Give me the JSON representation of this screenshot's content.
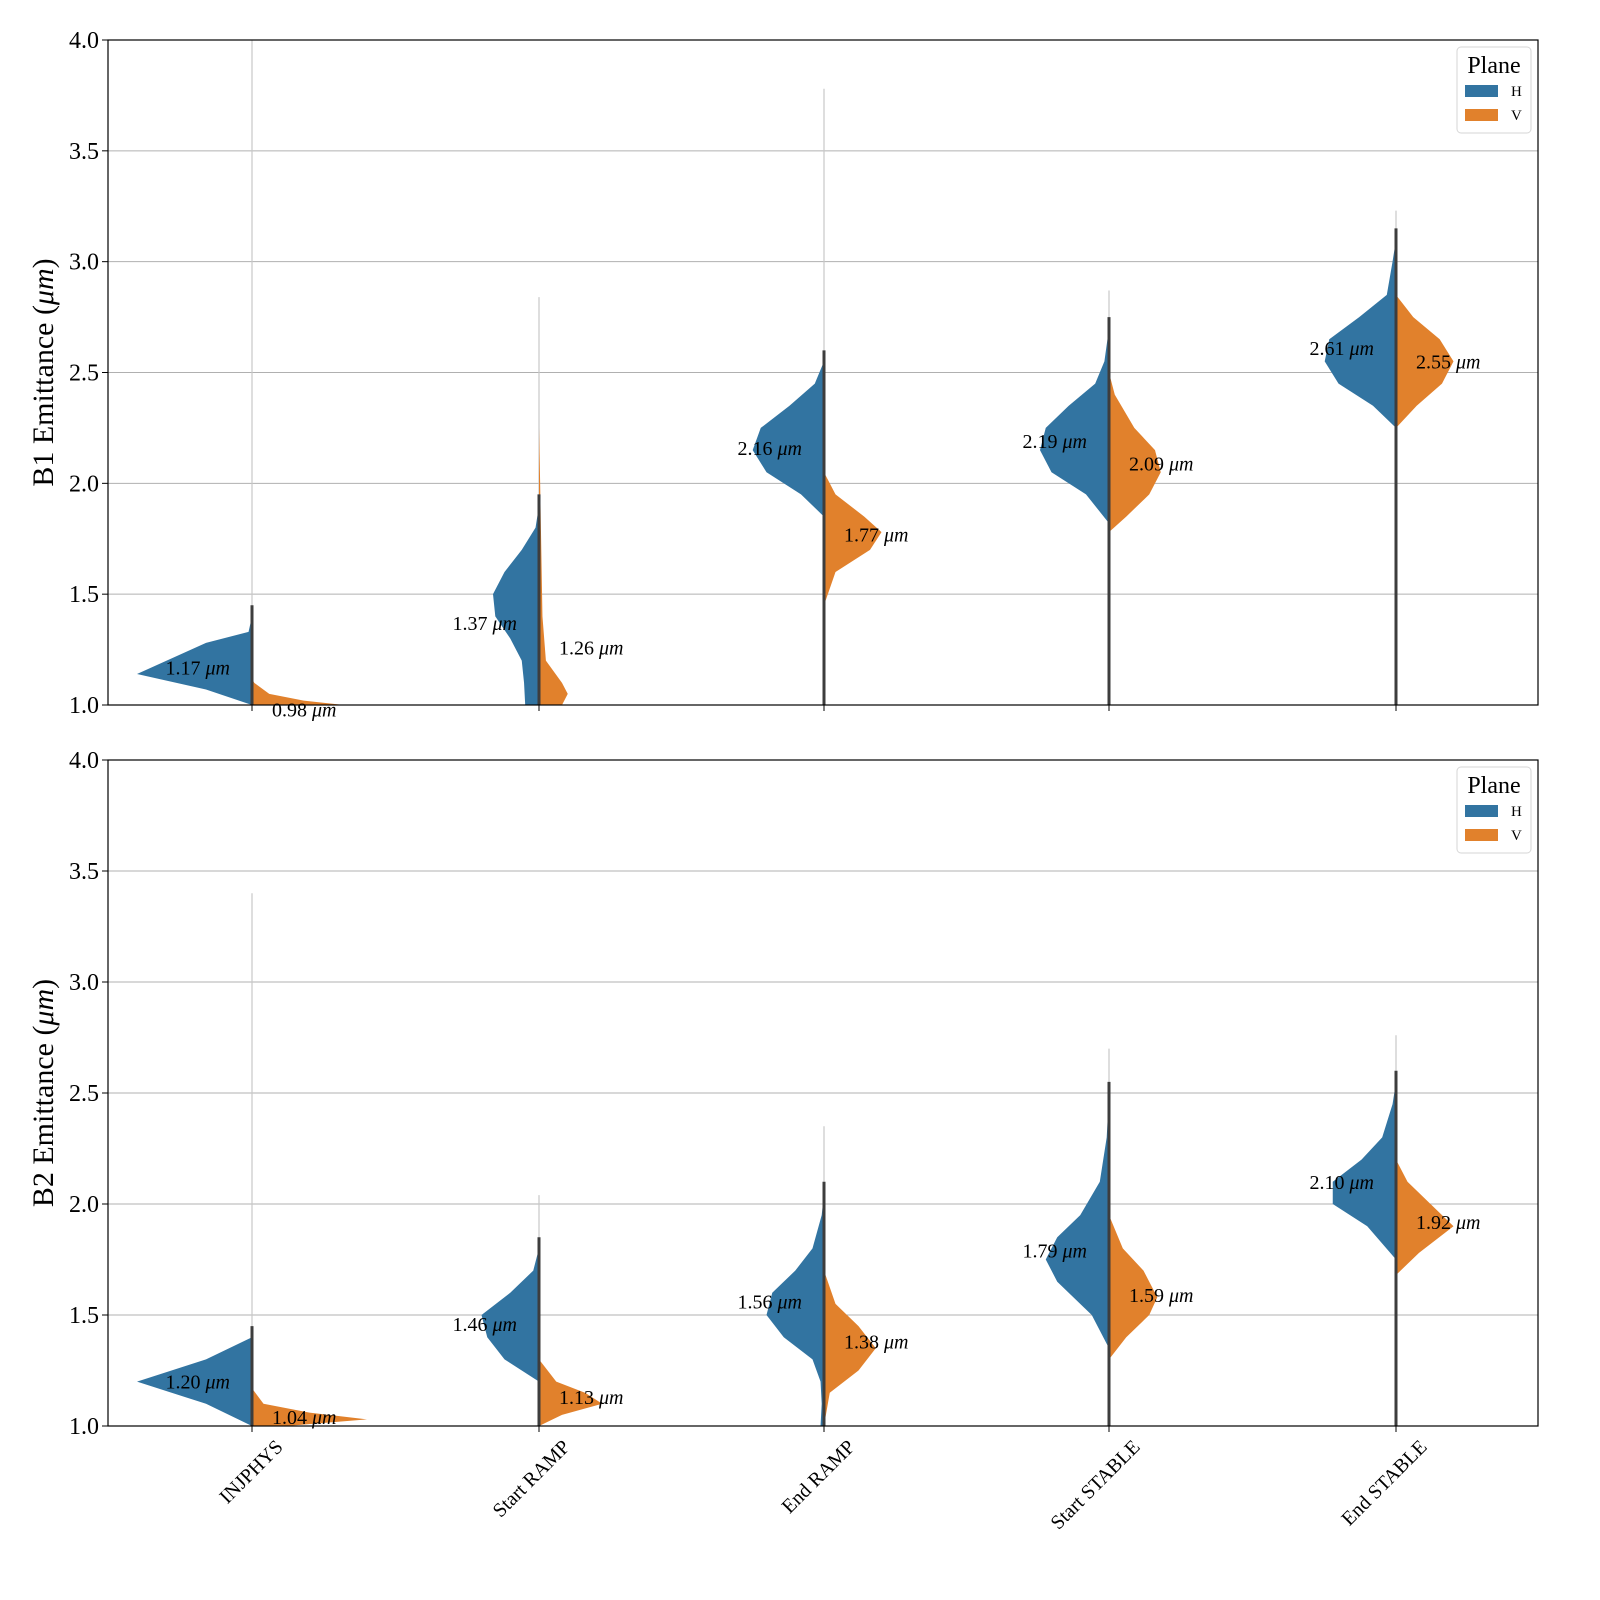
{
  "colors": {
    "H": "#3274a1",
    "V": "#e1812c",
    "inner": "#3d3d3d",
    "whisker": "#c8c8c8"
  },
  "chart_data": [
    {
      "type": "violin",
      "subtype": "split-violin",
      "title": "",
      "xlabel": "",
      "ylabel": "B1 Emittance (μm)",
      "ylabel_parts": [
        "B1 Emittance (",
        "μm",
        ")"
      ],
      "ylim": [
        1.0,
        4.0
      ],
      "yticks": [
        "1.0",
        "1.5",
        "2.0",
        "2.5",
        "3.0",
        "3.5",
        "4.0"
      ],
      "grid": true,
      "legend": {
        "title": "Plane",
        "entries": [
          "H",
          "V"
        ],
        "placement": "top-right"
      },
      "categories": [
        "INJPHYS",
        "Start RAMP",
        "End RAMP",
        "Start STABLE",
        "End STABLE"
      ],
      "series": [
        {
          "name": "H",
          "medians": [
            1.17,
            1.37,
            2.16,
            2.19,
            2.61
          ],
          "annotations": [
            "1.17 μm",
            "1.37 μm",
            "2.16 μm",
            "2.19 μm",
            "2.61 μm"
          ],
          "ranges": [
            [
              1.0,
              4.0
            ],
            [
              1.0,
              2.84
            ],
            [
              1.33,
              3.78
            ],
            [
              1.71,
              2.87
            ],
            [
              2.11,
              3.23
            ]
          ],
          "profiles": [
            [
              [
                1.0,
                0.0
              ],
              [
                1.07,
                0.4
              ],
              [
                1.14,
                1.0
              ],
              [
                1.28,
                0.4
              ],
              [
                1.33,
                0.03
              ],
              [
                1.4,
                0.0
              ]
            ],
            [
              [
                1.0,
                0.12
              ],
              [
                1.1,
                0.13
              ],
              [
                1.2,
                0.15
              ],
              [
                1.3,
                0.25
              ],
              [
                1.4,
                0.38
              ],
              [
                1.5,
                0.4
              ],
              [
                1.6,
                0.3
              ],
              [
                1.7,
                0.15
              ],
              [
                1.8,
                0.03
              ],
              [
                1.9,
                0.0
              ]
            ],
            [
              [
                1.85,
                0.0
              ],
              [
                1.95,
                0.2
              ],
              [
                2.05,
                0.5
              ],
              [
                2.15,
                0.62
              ],
              [
                2.25,
                0.55
              ],
              [
                2.35,
                0.3
              ],
              [
                2.45,
                0.08
              ],
              [
                2.55,
                0.0
              ]
            ],
            [
              [
                1.82,
                0.0
              ],
              [
                1.95,
                0.2
              ],
              [
                2.05,
                0.5
              ],
              [
                2.15,
                0.6
              ],
              [
                2.25,
                0.55
              ],
              [
                2.35,
                0.35
              ],
              [
                2.45,
                0.12
              ],
              [
                2.55,
                0.04
              ],
              [
                2.7,
                0.0
              ]
            ],
            [
              [
                2.25,
                0.0
              ],
              [
                2.35,
                0.2
              ],
              [
                2.45,
                0.5
              ],
              [
                2.55,
                0.62
              ],
              [
                2.65,
                0.58
              ],
              [
                2.75,
                0.32
              ],
              [
                2.85,
                0.08
              ],
              [
                3.0,
                0.03
              ],
              [
                3.1,
                0.0
              ]
            ]
          ]
        },
        {
          "name": "V",
          "medians": [
            0.98,
            1.26,
            1.77,
            2.09,
            2.55
          ],
          "annotations": [
            "0.98 μm",
            "1.26 μm",
            "1.77 μm",
            "2.09 μm",
            "2.55 μm"
          ],
          "ranges": [
            [
              0.9,
              1.1
            ],
            [
              1.0,
              2.3
            ],
            [
              1.35,
              2.0
            ],
            [
              1.75,
              2.5
            ],
            [
              2.2,
              2.85
            ]
          ],
          "profiles": [
            [
              [
                1.0,
                0.8
              ],
              [
                1.02,
                0.45
              ],
              [
                1.05,
                0.15
              ],
              [
                1.1,
                0.02
              ],
              [
                1.12,
                0.0
              ]
            ],
            [
              [
                1.0,
                0.2
              ],
              [
                1.05,
                0.25
              ],
              [
                1.1,
                0.2
              ],
              [
                1.2,
                0.06
              ],
              [
                1.4,
                0.03
              ],
              [
                1.7,
                0.02
              ],
              [
                2.0,
                0.01
              ],
              [
                2.25,
                0.0
              ]
            ],
            [
              [
                1.45,
                0.0
              ],
              [
                1.6,
                0.1
              ],
              [
                1.7,
                0.4
              ],
              [
                1.78,
                0.5
              ],
              [
                1.85,
                0.35
              ],
              [
                1.95,
                0.1
              ],
              [
                2.05,
                0.0
              ]
            ],
            [
              [
                1.78,
                0.0
              ],
              [
                1.85,
                0.15
              ],
              [
                1.95,
                0.35
              ],
              [
                2.05,
                0.45
              ],
              [
                2.15,
                0.4
              ],
              [
                2.25,
                0.22
              ],
              [
                2.4,
                0.05
              ],
              [
                2.5,
                0.0
              ]
            ],
            [
              [
                2.25,
                0.0
              ],
              [
                2.35,
                0.18
              ],
              [
                2.45,
                0.4
              ],
              [
                2.55,
                0.5
              ],
              [
                2.65,
                0.38
              ],
              [
                2.75,
                0.15
              ],
              [
                2.85,
                0.0
              ]
            ]
          ]
        }
      ]
    },
    {
      "type": "violin",
      "subtype": "split-violin",
      "title": "",
      "xlabel": "",
      "ylabel": "B2 Emittance (μm)",
      "ylabel_parts": [
        "B2 Emittance (",
        "μm",
        ")"
      ],
      "ylim": [
        1.0,
        4.0
      ],
      "yticks": [
        "1.0",
        "1.5",
        "2.0",
        "2.5",
        "3.0",
        "3.5",
        "4.0"
      ],
      "grid": true,
      "legend": {
        "title": "Plane",
        "entries": [
          "H",
          "V"
        ],
        "placement": "top-right"
      },
      "categories": [
        "INJPHYS",
        "Start RAMP",
        "End RAMP",
        "Start STABLE",
        "End STABLE"
      ],
      "series": [
        {
          "name": "H",
          "medians": [
            1.2,
            1.46,
            1.56,
            1.79,
            2.1
          ],
          "annotations": [
            "1.20 μm",
            "1.46 μm",
            "1.56 μm",
            "1.79 μm",
            "2.10 μm"
          ],
          "ranges": [
            [
              1.0,
              3.4
            ],
            [
              1.0,
              2.04
            ],
            [
              1.0,
              2.35
            ],
            [
              1.25,
              2.7
            ],
            [
              1.63,
              2.76
            ]
          ],
          "profiles": [
            [
              [
                1.0,
                0.0
              ],
              [
                1.1,
                0.4
              ],
              [
                1.2,
                1.0
              ],
              [
                1.3,
                0.4
              ],
              [
                1.4,
                0.0
              ]
            ],
            [
              [
                1.2,
                0.0
              ],
              [
                1.3,
                0.3
              ],
              [
                1.4,
                0.45
              ],
              [
                1.5,
                0.5
              ],
              [
                1.6,
                0.25
              ],
              [
                1.7,
                0.05
              ],
              [
                1.8,
                0.0
              ]
            ],
            [
              [
                1.0,
                0.03
              ],
              [
                1.1,
                0.02
              ],
              [
                1.2,
                0.03
              ],
              [
                1.3,
                0.1
              ],
              [
                1.4,
                0.35
              ],
              [
                1.5,
                0.5
              ],
              [
                1.6,
                0.45
              ],
              [
                1.7,
                0.25
              ],
              [
                1.8,
                0.1
              ],
              [
                1.95,
                0.02
              ],
              [
                2.05,
                0.0
              ]
            ],
            [
              [
                1.35,
                0.0
              ],
              [
                1.5,
                0.15
              ],
              [
                1.65,
                0.45
              ],
              [
                1.75,
                0.55
              ],
              [
                1.85,
                0.45
              ],
              [
                1.95,
                0.25
              ],
              [
                2.1,
                0.08
              ],
              [
                2.3,
                0.02
              ],
              [
                2.5,
                0.0
              ]
            ],
            [
              [
                1.75,
                0.0
              ],
              [
                1.9,
                0.25
              ],
              [
                2.0,
                0.55
              ],
              [
                2.1,
                0.55
              ],
              [
                2.2,
                0.3
              ],
              [
                2.3,
                0.12
              ],
              [
                2.45,
                0.03
              ],
              [
                2.55,
                0.0
              ]
            ]
          ]
        },
        {
          "name": "V",
          "medians": [
            1.04,
            1.13,
            1.38,
            1.59,
            1.92
          ],
          "annotations": [
            "1.04 μm",
            "1.13 μm",
            "1.38 μm",
            "1.59 μm",
            "1.92 μm"
          ],
          "ranges": [
            [
              0.95,
              1.18
            ],
            [
              1.0,
              1.3
            ],
            [
              1.0,
              1.8
            ],
            [
              1.25,
              2.0
            ],
            [
              1.63,
              2.2
            ]
          ],
          "profiles": [
            [
              [
                1.0,
                0.3
              ],
              [
                1.03,
                1.0
              ],
              [
                1.06,
                0.5
              ],
              [
                1.1,
                0.1
              ],
              [
                1.17,
                0.0
              ]
            ],
            [
              [
                1.0,
                0.0
              ],
              [
                1.05,
                0.2
              ],
              [
                1.1,
                0.55
              ],
              [
                1.15,
                0.4
              ],
              [
                1.2,
                0.15
              ],
              [
                1.3,
                0.0
              ]
            ],
            [
              [
                1.0,
                0.0
              ],
              [
                1.15,
                0.05
              ],
              [
                1.25,
                0.3
              ],
              [
                1.35,
                0.45
              ],
              [
                1.45,
                0.3
              ],
              [
                1.55,
                0.1
              ],
              [
                1.7,
                0.0
              ]
            ],
            [
              [
                1.3,
                0.0
              ],
              [
                1.4,
                0.15
              ],
              [
                1.5,
                0.35
              ],
              [
                1.58,
                0.42
              ],
              [
                1.7,
                0.3
              ],
              [
                1.8,
                0.12
              ],
              [
                1.95,
                0.0
              ]
            ],
            [
              [
                1.68,
                0.0
              ],
              [
                1.78,
                0.2
              ],
              [
                1.9,
                0.5
              ],
              [
                2.0,
                0.3
              ],
              [
                2.1,
                0.1
              ],
              [
                2.2,
                0.0
              ]
            ]
          ]
        }
      ]
    }
  ]
}
